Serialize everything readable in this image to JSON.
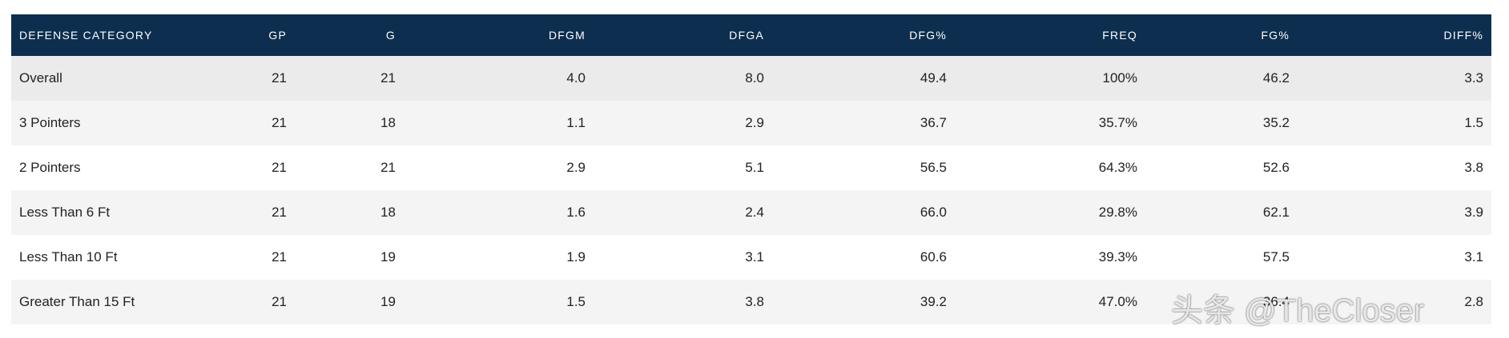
{
  "table": {
    "headers": [
      "DEFENSE CATEGORY",
      "GP",
      "G",
      "DFGM",
      "DFGA",
      "DFG%",
      "FREQ",
      "FG%",
      "DIFF%"
    ],
    "rows": [
      [
        "Overall",
        "21",
        "21",
        "4.0",
        "8.0",
        "49.4",
        "100%",
        "46.2",
        "3.3"
      ],
      [
        "3 Pointers",
        "21",
        "18",
        "1.1",
        "2.9",
        "36.7",
        "35.7%",
        "35.2",
        "1.5"
      ],
      [
        "2 Pointers",
        "21",
        "21",
        "2.9",
        "5.1",
        "56.5",
        "64.3%",
        "52.6",
        "3.8"
      ],
      [
        "Less Than 6 Ft",
        "21",
        "18",
        "1.6",
        "2.4",
        "66.0",
        "29.8%",
        "62.1",
        "3.9"
      ],
      [
        "Less Than 10 Ft",
        "21",
        "19",
        "1.9",
        "3.1",
        "60.6",
        "39.3%",
        "57.5",
        "3.1"
      ],
      [
        "Greater Than 15 Ft",
        "21",
        "19",
        "1.5",
        "3.8",
        "39.2",
        "47.0%",
        "36.4",
        "2.8"
      ]
    ]
  },
  "watermark": "头条 @TheCloser"
}
